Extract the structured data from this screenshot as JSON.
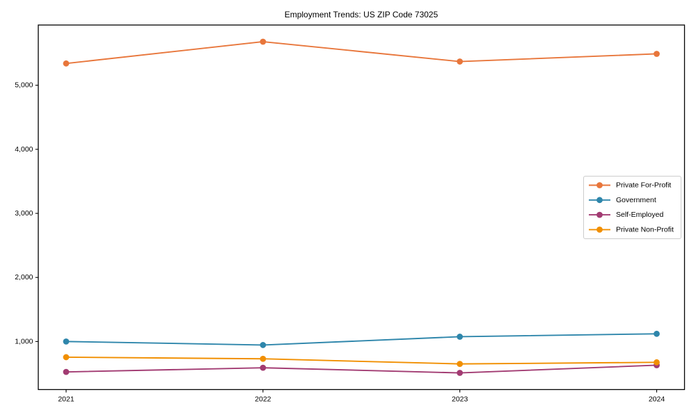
{
  "chart_data": {
    "type": "line",
    "title": "Employment Trends: US ZIP Code 73025",
    "x": [
      "2021",
      "2022",
      "2023",
      "2024"
    ],
    "series": [
      {
        "name": "Private For-Profit",
        "color": "#e8763b",
        "values": [
          5340,
          5680,
          5370,
          5490
        ]
      },
      {
        "name": "Government",
        "color": "#2e86ab",
        "values": [
          1000,
          945,
          1075,
          1120
        ]
      },
      {
        "name": "Self-Employed",
        "color": "#a23b72",
        "values": [
          525,
          590,
          510,
          630
        ]
      },
      {
        "name": "Private Non-Profit",
        "color": "#f18f01",
        "values": [
          755,
          730,
          650,
          675
        ]
      }
    ],
    "yticks": [
      1000,
      2000,
      3000,
      4000,
      5000
    ],
    "ytick_labels": [
      "1,000",
      "2,000",
      "3,000",
      "4,000",
      "5,000"
    ],
    "ylim": [
      250,
      5940
    ],
    "xlabel": "",
    "ylabel": "",
    "grid": false,
    "legend_position": "center right",
    "marker": "circle",
    "axis_color": "#000000",
    "legend_border_color": "#cccccc",
    "background_color": "#ffffff"
  }
}
